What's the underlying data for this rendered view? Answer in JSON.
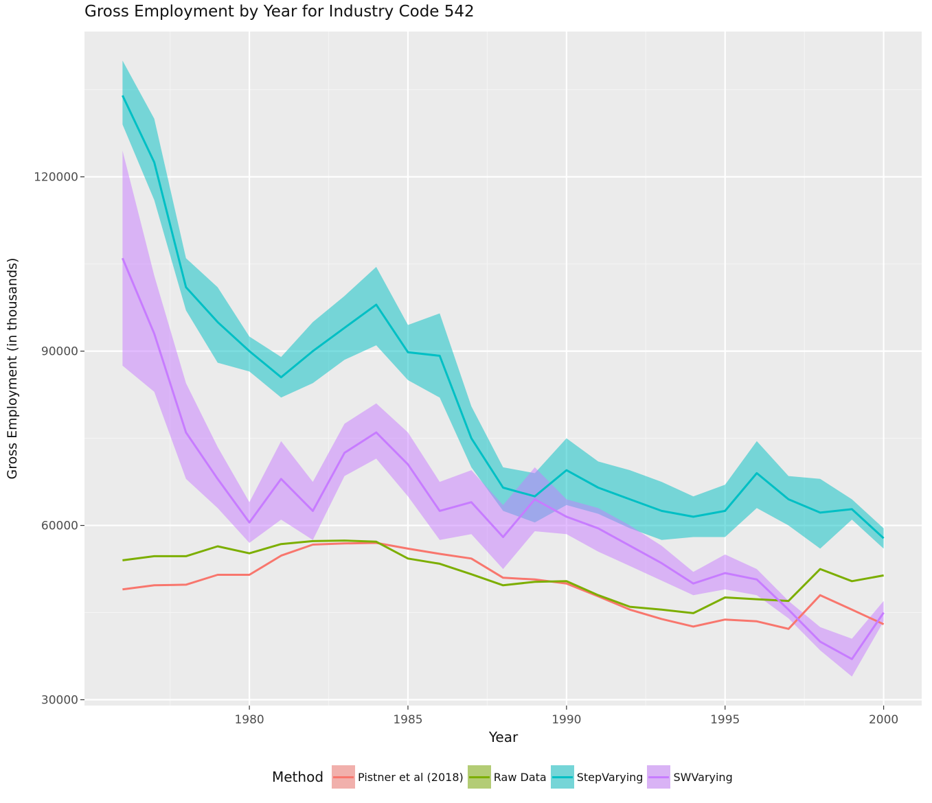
{
  "chart_data": {
    "type": "line",
    "title": "Gross Employment by Year for Industry Code 542",
    "xlabel": "Year",
    "ylabel": "Gross Employment (in thousands)",
    "xlim": [
      1974.8,
      2001.2
    ],
    "ylim": [
      29000,
      145000
    ],
    "x_ticks": [
      1980,
      1985,
      1990,
      1995,
      2000
    ],
    "y_ticks": [
      30000,
      60000,
      90000,
      120000
    ],
    "grid": true,
    "legend_title": "Method",
    "legend_position": "bottom",
    "x": [
      1976,
      1977,
      1978,
      1979,
      1980,
      1981,
      1982,
      1983,
      1984,
      1985,
      1986,
      1987,
      1988,
      1989,
      1990,
      1991,
      1992,
      1993,
      1994,
      1995,
      1996,
      1997,
      1998,
      1999,
      2000
    ],
    "series": [
      {
        "name": "Pistner et al (2018)",
        "color": "#f8766d",
        "values": [
          49000,
          49700,
          49800,
          51500,
          51500,
          54800,
          56700,
          56900,
          57000,
          56000,
          55100,
          54300,
          51000,
          50700,
          50000,
          47800,
          45500,
          43900,
          42600,
          43800,
          43500,
          42200,
          48000,
          45500,
          43000
        ]
      },
      {
        "name": "Raw Data",
        "color": "#7cae00",
        "values": [
          54000,
          54700,
          54700,
          56400,
          55200,
          56800,
          57300,
          57400,
          57200,
          54300,
          53400,
          51600,
          49700,
          50300,
          50400,
          48000,
          46000,
          45500,
          44900,
          47600,
          47300,
          47000,
          52500,
          50400,
          51400
        ]
      },
      {
        "name": "StepVarying",
        "color": "#00bfc4",
        "values": [
          134000,
          122500,
          101000,
          95000,
          90000,
          85500,
          90000,
          94000,
          98000,
          89800,
          89200,
          75000,
          66500,
          65000,
          69500,
          66500,
          64500,
          62500,
          61500,
          62500,
          69000,
          64500,
          62200,
          62800,
          57800
        ],
        "lower": [
          129000,
          116000,
          97000,
          88000,
          86500,
          82000,
          84500,
          88500,
          91000,
          85000,
          82000,
          70000,
          62500,
          60500,
          63500,
          62000,
          59500,
          57500,
          58000,
          58000,
          63000,
          60000,
          56000,
          61000,
          56000
        ],
        "upper": [
          140000,
          130000,
          106000,
          101000,
          92500,
          89000,
          95000,
          99500,
          104500,
          94500,
          96500,
          80500,
          70000,
          69000,
          75000,
          71000,
          69500,
          67500,
          65000,
          67000,
          74500,
          68500,
          68000,
          64500,
          59500
        ]
      },
      {
        "name": "SWVarying",
        "color": "#c77cff",
        "values": [
          106000,
          93000,
          76000,
          68000,
          60500,
          68000,
          62500,
          72500,
          76000,
          70500,
          62500,
          64000,
          58000,
          64500,
          61500,
          59500,
          56500,
          53500,
          50000,
          51800,
          50700,
          45500,
          40000,
          37000,
          45000
        ],
        "lower": [
          87500,
          83000,
          68000,
          63000,
          57000,
          61000,
          57500,
          68500,
          71500,
          65000,
          57500,
          58500,
          52500,
          59000,
          58500,
          55500,
          53000,
          50500,
          48000,
          49000,
          48000,
          44000,
          38500,
          34000,
          43500
        ],
        "upper": [
          124500,
          103000,
          84500,
          73500,
          64000,
          74500,
          67500,
          77500,
          81000,
          76000,
          67500,
          69500,
          63500,
          70000,
          64500,
          63000,
          60000,
          56500,
          52000,
          55000,
          52500,
          47000,
          42500,
          40500,
          47000
        ]
      }
    ]
  }
}
